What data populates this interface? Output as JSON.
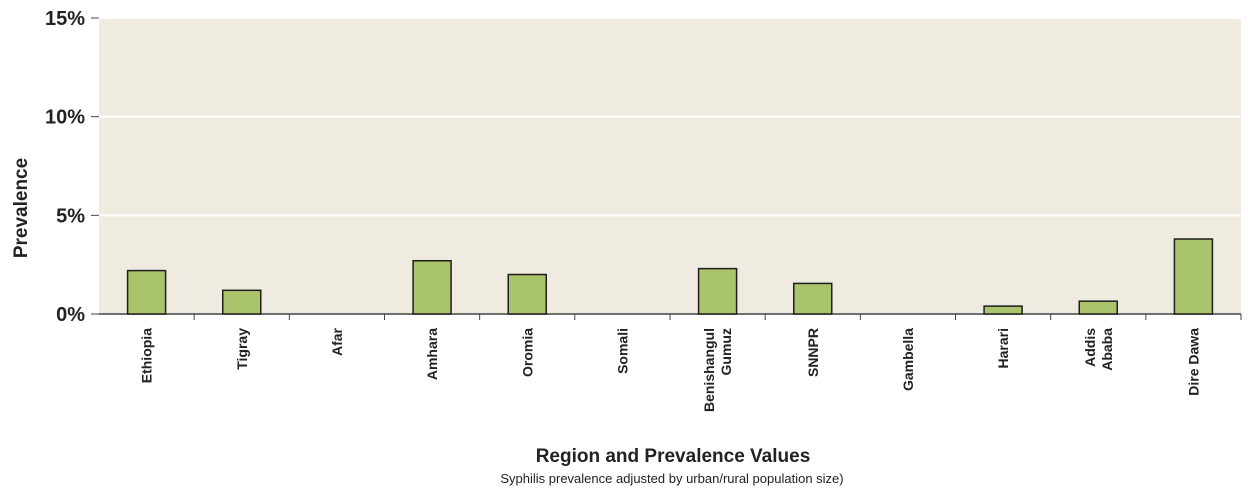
{
  "chart_data": {
    "type": "bar",
    "categories": [
      [
        "Ethiopia"
      ],
      [
        "Tigray"
      ],
      [
        "Afar"
      ],
      [
        "Amhara"
      ],
      [
        "Oromia"
      ],
      [
        "Somali"
      ],
      [
        "Benishangul",
        "Gumuz"
      ],
      [
        "SNNPR"
      ],
      [
        "Gambella"
      ],
      [
        "Harari"
      ],
      [
        "Addis",
        "Ababa"
      ],
      [
        "Dire Dawa"
      ]
    ],
    "values": [
      2.2,
      1.2,
      0,
      2.7,
      2.0,
      0,
      2.3,
      1.55,
      0,
      0.4,
      0.65,
      3.8
    ],
    "ylabel": "Prevalence",
    "xlabel": "Region and Prevalence Values",
    "subtitle": "Syphilis prevalence adjusted by urban/rural population size)",
    "ylim": [
      0,
      15
    ],
    "yticks": [
      "0%",
      "5%",
      "10%",
      "15%"
    ],
    "grid": true,
    "colors": {
      "bar_fill": "#a9c46a",
      "bar_stroke": "#1e1e1e",
      "plot_bg": "#efebe1",
      "grid": "#ffffff",
      "axis": "#444444"
    }
  }
}
